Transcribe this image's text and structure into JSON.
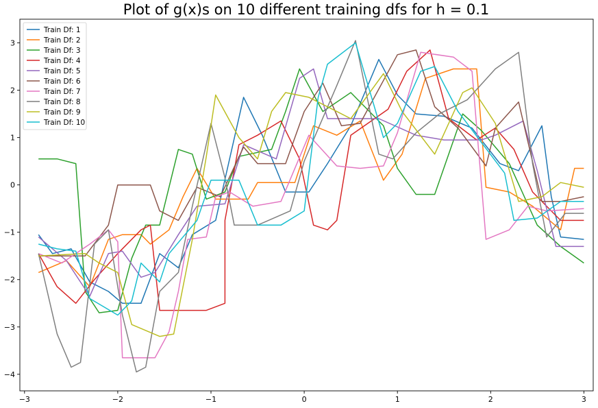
{
  "chart_data": {
    "type": "line",
    "title": "Plot of g(x)s on 10 different training dfs for h = 0.1",
    "xlabel": "",
    "ylabel": "",
    "xlim": [
      -3.05,
      3.1
    ],
    "ylim": [
      -4.35,
      3.5
    ],
    "xticks": [
      -3,
      -2,
      -1,
      0,
      1,
      2,
      3
    ],
    "xtick_labels": [
      "−3",
      "−2",
      "−1",
      "0",
      "1",
      "2",
      "3"
    ],
    "yticks": [
      -4,
      -3,
      -2,
      -1,
      0,
      1,
      2,
      3
    ],
    "ytick_labels": [
      "−4",
      "−3",
      "−2",
      "−1",
      "0",
      "1",
      "2",
      "3"
    ],
    "grid": false,
    "legend": "top-left",
    "series": [
      {
        "name": "Train Df: 1",
        "color": "#1f77b4",
        "points": [
          [
            -2.85,
            -1.05
          ],
          [
            -2.7,
            -1.45
          ],
          [
            -2.5,
            -1.35
          ],
          [
            -2.3,
            -2.05
          ],
          [
            -2.1,
            -2.25
          ],
          [
            -1.95,
            -2.5
          ],
          [
            -1.75,
            -2.5
          ],
          [
            -1.55,
            -1.45
          ],
          [
            -1.35,
            -1.75
          ],
          [
            -1.2,
            -1.05
          ],
          [
            -0.95,
            -0.75
          ],
          [
            -0.8,
            0.55
          ],
          [
            -0.65,
            1.85
          ],
          [
            -0.45,
            1.05
          ],
          [
            -0.2,
            -0.15
          ],
          [
            0.05,
            -0.15
          ],
          [
            0.25,
            0.45
          ],
          [
            0.5,
            1.25
          ],
          [
            0.8,
            2.65
          ],
          [
            1.0,
            1.9
          ],
          [
            1.2,
            1.5
          ],
          [
            1.5,
            1.45
          ],
          [
            1.8,
            1.2
          ],
          [
            2.1,
            0.45
          ],
          [
            2.3,
            0.3
          ],
          [
            2.55,
            1.25
          ],
          [
            2.65,
            -0.25
          ],
          [
            2.75,
            -1.1
          ],
          [
            3.0,
            -1.15
          ]
        ]
      },
      {
        "name": "Train Df: 2",
        "color": "#ff7f0e",
        "points": [
          [
            -2.85,
            -1.85
          ],
          [
            -2.55,
            -1.6
          ],
          [
            -2.3,
            -2.15
          ],
          [
            -2.1,
            -1.15
          ],
          [
            -1.95,
            -1.05
          ],
          [
            -1.75,
            -1.05
          ],
          [
            -1.65,
            -1.25
          ],
          [
            -1.45,
            -0.95
          ],
          [
            -1.3,
            -0.25
          ],
          [
            -1.15,
            0.35
          ],
          [
            -0.95,
            -0.3
          ],
          [
            -0.6,
            -0.3
          ],
          [
            -0.5,
            0.05
          ],
          [
            -0.1,
            0.05
          ],
          [
            0.1,
            1.25
          ],
          [
            0.35,
            1.05
          ],
          [
            0.6,
            1.35
          ],
          [
            0.85,
            0.1
          ],
          [
            1.05,
            0.65
          ],
          [
            1.3,
            2.25
          ],
          [
            1.6,
            2.45
          ],
          [
            1.85,
            2.45
          ],
          [
            1.95,
            -0.05
          ],
          [
            2.2,
            -0.15
          ],
          [
            2.45,
            -0.45
          ],
          [
            2.75,
            -0.95
          ],
          [
            2.9,
            0.35
          ],
          [
            3.0,
            0.35
          ]
        ]
      },
      {
        "name": "Train Df: 3",
        "color": "#2ca02c",
        "points": [
          [
            -2.85,
            0.55
          ],
          [
            -2.65,
            0.55
          ],
          [
            -2.45,
            0.45
          ],
          [
            -2.35,
            -2.25
          ],
          [
            -2.2,
            -2.7
          ],
          [
            -2.0,
            -2.65
          ],
          [
            -1.85,
            -1.55
          ],
          [
            -1.7,
            -0.85
          ],
          [
            -1.55,
            -0.85
          ],
          [
            -1.35,
            0.75
          ],
          [
            -1.2,
            0.65
          ],
          [
            -1.05,
            -0.3
          ],
          [
            -0.85,
            -0.15
          ],
          [
            -0.7,
            0.6
          ],
          [
            -0.35,
            0.75
          ],
          [
            -0.2,
            1.55
          ],
          [
            -0.05,
            2.45
          ],
          [
            0.2,
            1.55
          ],
          [
            0.5,
            1.95
          ],
          [
            0.85,
            1.25
          ],
          [
            1.0,
            0.35
          ],
          [
            1.2,
            -0.2
          ],
          [
            1.4,
            -0.2
          ],
          [
            1.7,
            1.5
          ],
          [
            1.9,
            1.15
          ],
          [
            2.2,
            0.45
          ],
          [
            2.5,
            -0.85
          ],
          [
            2.75,
            -1.3
          ],
          [
            3.0,
            -1.65
          ]
        ]
      },
      {
        "name": "Train Df: 4",
        "color": "#d62728",
        "points": [
          [
            -2.85,
            -1.45
          ],
          [
            -2.65,
            -2.15
          ],
          [
            -2.45,
            -2.5
          ],
          [
            -2.25,
            -2.0
          ],
          [
            -2.0,
            -1.45
          ],
          [
            -1.75,
            -0.95
          ],
          [
            -1.65,
            -0.85
          ],
          [
            -1.55,
            -2.65
          ],
          [
            -1.05,
            -2.65
          ],
          [
            -0.85,
            -2.5
          ],
          [
            -0.85,
            -0.75
          ],
          [
            -0.7,
            0.85
          ],
          [
            -0.5,
            1.05
          ],
          [
            -0.25,
            1.35
          ],
          [
            -0.05,
            0.55
          ],
          [
            0.1,
            -0.85
          ],
          [
            0.25,
            -0.95
          ],
          [
            0.35,
            -0.75
          ],
          [
            0.5,
            1.05
          ],
          [
            0.9,
            1.6
          ],
          [
            1.1,
            2.4
          ],
          [
            1.35,
            2.85
          ],
          [
            1.55,
            1.4
          ],
          [
            1.85,
            0.95
          ],
          [
            2.05,
            1.2
          ],
          [
            2.25,
            0.75
          ],
          [
            2.45,
            -0.15
          ],
          [
            2.75,
            -0.75
          ],
          [
            3.0,
            -0.75
          ]
        ]
      },
      {
        "name": "Train Df: 5",
        "color": "#9467bd",
        "points": [
          [
            -2.85,
            -1.1
          ],
          [
            -2.55,
            -1.6
          ],
          [
            -2.3,
            -2.35
          ],
          [
            -2.1,
            -1.45
          ],
          [
            -1.95,
            -1.4
          ],
          [
            -1.75,
            -1.95
          ],
          [
            -1.6,
            -1.85
          ],
          [
            -1.35,
            -1.05
          ],
          [
            -1.15,
            -0.45
          ],
          [
            -0.85,
            -0.4
          ],
          [
            -0.65,
            0.85
          ],
          [
            -0.3,
            0.55
          ],
          [
            -0.05,
            2.25
          ],
          [
            0.1,
            2.45
          ],
          [
            0.25,
            1.4
          ],
          [
            0.8,
            1.4
          ],
          [
            1.2,
            1.05
          ],
          [
            1.5,
            0.95
          ],
          [
            1.9,
            0.95
          ],
          [
            2.05,
            1.05
          ],
          [
            2.35,
            1.35
          ],
          [
            2.5,
            0.3
          ],
          [
            2.7,
            -1.3
          ],
          [
            3.0,
            -1.3
          ]
        ]
      },
      {
        "name": "Train Df: 6",
        "color": "#8c564b",
        "points": [
          [
            -2.85,
            -1.5
          ],
          [
            -2.35,
            -1.5
          ],
          [
            -2.1,
            -0.85
          ],
          [
            -2.0,
            0.0
          ],
          [
            -1.65,
            0.0
          ],
          [
            -1.55,
            -0.55
          ],
          [
            -1.35,
            -0.75
          ],
          [
            -1.15,
            -0.05
          ],
          [
            -0.9,
            -0.25
          ],
          [
            -0.65,
            0.8
          ],
          [
            -0.5,
            0.45
          ],
          [
            -0.2,
            0.45
          ],
          [
            0.0,
            1.55
          ],
          [
            0.2,
            2.15
          ],
          [
            0.4,
            1.25
          ],
          [
            0.6,
            1.3
          ],
          [
            1.0,
            2.75
          ],
          [
            1.2,
            2.85
          ],
          [
            1.4,
            1.65
          ],
          [
            1.65,
            1.2
          ],
          [
            1.95,
            0.4
          ],
          [
            2.05,
            1.2
          ],
          [
            2.3,
            1.75
          ],
          [
            2.55,
            -0.35
          ],
          [
            2.75,
            -0.35
          ],
          [
            3.0,
            -0.25
          ]
        ]
      },
      {
        "name": "Train Df: 7",
        "color": "#e377c2",
        "points": [
          [
            -2.85,
            -1.45
          ],
          [
            -2.6,
            -1.65
          ],
          [
            -2.3,
            -1.25
          ],
          [
            -2.1,
            -0.95
          ],
          [
            -2.0,
            -1.2
          ],
          [
            -1.95,
            -3.65
          ],
          [
            -1.6,
            -3.65
          ],
          [
            -1.45,
            -3.1
          ],
          [
            -1.35,
            -2.25
          ],
          [
            -1.25,
            -1.15
          ],
          [
            -1.05,
            -1.1
          ],
          [
            -0.95,
            -0.25
          ],
          [
            -0.8,
            -0.15
          ],
          [
            -0.55,
            -0.45
          ],
          [
            -0.25,
            -0.35
          ],
          [
            0.05,
            1.05
          ],
          [
            0.35,
            0.4
          ],
          [
            0.6,
            0.35
          ],
          [
            0.85,
            0.4
          ],
          [
            1.0,
            1.1
          ],
          [
            1.25,
            2.8
          ],
          [
            1.6,
            2.7
          ],
          [
            1.8,
            2.4
          ],
          [
            1.95,
            -1.15
          ],
          [
            2.2,
            -0.95
          ],
          [
            2.4,
            -0.45
          ],
          [
            2.6,
            -0.55
          ],
          [
            3.0,
            -0.5
          ]
        ]
      },
      {
        "name": "Train Df: 8",
        "color": "#7f7f7f",
        "points": [
          [
            -2.85,
            -1.45
          ],
          [
            -2.65,
            -3.15
          ],
          [
            -2.5,
            -3.85
          ],
          [
            -2.4,
            -3.75
          ],
          [
            -2.25,
            -1.25
          ],
          [
            -2.1,
            -0.95
          ],
          [
            -1.95,
            -2.75
          ],
          [
            -1.8,
            -3.95
          ],
          [
            -1.7,
            -3.85
          ],
          [
            -1.55,
            -2.25
          ],
          [
            -1.35,
            -1.85
          ],
          [
            -1.2,
            -0.45
          ],
          [
            -1.0,
            1.3
          ],
          [
            -0.85,
            0.15
          ],
          [
            -0.75,
            -0.85
          ],
          [
            -0.5,
            -0.85
          ],
          [
            -0.15,
            -0.55
          ],
          [
            0.0,
            0.5
          ],
          [
            0.35,
            2.1
          ],
          [
            0.55,
            3.05
          ],
          [
            0.8,
            0.65
          ],
          [
            0.95,
            0.55
          ],
          [
            1.2,
            1.1
          ],
          [
            1.45,
            1.5
          ],
          [
            1.75,
            1.8
          ],
          [
            2.05,
            2.45
          ],
          [
            2.3,
            2.8
          ],
          [
            2.45,
            0.45
          ],
          [
            2.6,
            -1.1
          ],
          [
            2.8,
            -0.6
          ],
          [
            3.0,
            -0.6
          ]
        ]
      },
      {
        "name": "Train Df: 9",
        "color": "#bcbd22",
        "points": [
          [
            -2.85,
            -1.5
          ],
          [
            -2.35,
            -1.45
          ],
          [
            -2.2,
            -1.65
          ],
          [
            -2.0,
            -1.85
          ],
          [
            -1.85,
            -2.95
          ],
          [
            -1.55,
            -3.2
          ],
          [
            -1.4,
            -3.15
          ],
          [
            -1.2,
            -1.15
          ],
          [
            -1.05,
            0.6
          ],
          [
            -0.95,
            1.9
          ],
          [
            -0.7,
            1.0
          ],
          [
            -0.5,
            0.55
          ],
          [
            -0.35,
            1.55
          ],
          [
            -0.2,
            1.95
          ],
          [
            0.05,
            1.85
          ],
          [
            0.35,
            1.55
          ],
          [
            0.5,
            1.4
          ],
          [
            0.85,
            2.35
          ],
          [
            1.05,
            1.55
          ],
          [
            1.4,
            0.65
          ],
          [
            1.7,
            1.95
          ],
          [
            1.8,
            2.05
          ],
          [
            2.05,
            1.3
          ],
          [
            2.3,
            -0.35
          ],
          [
            2.55,
            -0.25
          ],
          [
            2.75,
            0.05
          ],
          [
            3.0,
            -0.05
          ]
        ]
      },
      {
        "name": "Train Df: 10",
        "color": "#17becf",
        "points": [
          [
            -2.85,
            -1.25
          ],
          [
            -2.65,
            -1.35
          ],
          [
            -2.45,
            -1.4
          ],
          [
            -2.3,
            -2.4
          ],
          [
            -2.0,
            -2.75
          ],
          [
            -1.85,
            -2.45
          ],
          [
            -1.75,
            -1.65
          ],
          [
            -1.55,
            -2.05
          ],
          [
            -1.45,
            -1.45
          ],
          [
            -1.15,
            -0.75
          ],
          [
            -1.0,
            0.1
          ],
          [
            -0.7,
            0.1
          ],
          [
            -0.5,
            -0.85
          ],
          [
            -0.25,
            -0.85
          ],
          [
            0.0,
            -0.55
          ],
          [
            0.15,
            1.85
          ],
          [
            0.25,
            2.55
          ],
          [
            0.55,
            3.0
          ],
          [
            0.85,
            1.0
          ],
          [
            1.0,
            1.3
          ],
          [
            1.25,
            2.4
          ],
          [
            1.4,
            2.5
          ],
          [
            1.65,
            1.55
          ],
          [
            1.9,
            0.9
          ],
          [
            2.15,
            0.25
          ],
          [
            2.25,
            -0.75
          ],
          [
            2.5,
            -0.7
          ],
          [
            2.75,
            -0.35
          ],
          [
            3.0,
            -0.35
          ]
        ]
      }
    ]
  }
}
